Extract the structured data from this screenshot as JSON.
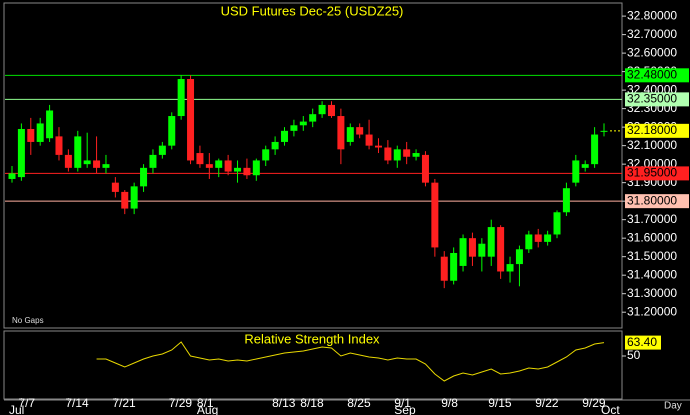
{
  "chart_data": {
    "type": "candlestick",
    "title": "USD Futures Dec-25 (USDZ25)",
    "up_color": "#00ff00",
    "down_color": "#ff2020",
    "categories": [
      null,
      "7/7",
      null,
      null,
      null,
      null,
      "7/14",
      null,
      null,
      null,
      null,
      "7/21",
      null,
      null,
      null,
      null,
      null,
      "7/29",
      null,
      null,
      "8/1",
      null,
      null,
      null,
      null,
      null,
      null,
      null,
      "8/13",
      null,
      null,
      "8/18",
      null,
      null,
      null,
      null,
      "8/25",
      null,
      null,
      null,
      null,
      "9/1",
      null,
      null,
      null,
      null,
      "9/8",
      null,
      null,
      null,
      null,
      "9/15",
      null,
      null,
      null,
      null,
      "9/22",
      null,
      null,
      null,
      null,
      "9/29",
      null,
      null
    ],
    "months": [
      {
        "label": "Jul",
        "index": 0
      },
      {
        "label": "Aug",
        "index": 20
      },
      {
        "label": "Sep",
        "index": 41
      },
      {
        "label": "Oct",
        "index": 63
      }
    ],
    "ohlc": [
      [
        31.92,
        31.99,
        31.9,
        31.95
      ],
      [
        31.93,
        32.22,
        31.91,
        32.19
      ],
      [
        32.19,
        32.25,
        32.05,
        32.12
      ],
      [
        32.12,
        32.25,
        32.1,
        32.22
      ],
      [
        32.14,
        32.32,
        32.12,
        32.29
      ],
      [
        32.15,
        32.2,
        32.02,
        32.05
      ],
      [
        32.05,
        32.08,
        31.96,
        31.98
      ],
      [
        31.98,
        32.18,
        31.96,
        32.15
      ],
      [
        32.0,
        32.17,
        31.98,
        32.02
      ],
      [
        32.02,
        32.15,
        31.95,
        31.98
      ],
      [
        31.98,
        32.05,
        31.95,
        32.0
      ],
      [
        31.9,
        31.93,
        31.82,
        31.85
      ],
      [
        31.85,
        31.86,
        31.73,
        31.76
      ],
      [
        31.76,
        31.9,
        31.73,
        31.88
      ],
      [
        31.88,
        32.0,
        31.85,
        31.98
      ],
      [
        31.98,
        32.08,
        31.95,
        32.05
      ],
      [
        32.05,
        32.12,
        32.03,
        32.1
      ],
      [
        32.1,
        32.28,
        32.08,
        32.26
      ],
      [
        32.26,
        32.48,
        32.24,
        32.46
      ],
      [
        32.46,
        32.48,
        32.0,
        32.02
      ],
      [
        32.06,
        32.1,
        31.98,
        32.0
      ],
      [
        32.0,
        32.06,
        31.92,
        31.98
      ],
      [
        31.98,
        32.03,
        31.93,
        32.02
      ],
      [
        32.02,
        32.05,
        31.94,
        31.96
      ],
      [
        31.96,
        32.02,
        31.9,
        31.98
      ],
      [
        31.98,
        32.03,
        31.92,
        31.94
      ],
      [
        31.94,
        32.03,
        31.91,
        32.02
      ],
      [
        32.02,
        32.1,
        31.99,
        32.08
      ],
      [
        32.08,
        32.15,
        32.05,
        32.12
      ],
      [
        32.12,
        32.2,
        32.1,
        32.18
      ],
      [
        32.18,
        32.24,
        32.15,
        32.21
      ],
      [
        32.21,
        32.26,
        32.18,
        32.23
      ],
      [
        32.23,
        32.3,
        32.2,
        32.27
      ],
      [
        32.27,
        32.34,
        32.25,
        32.32
      ],
      [
        32.32,
        32.34,
        32.25,
        32.26
      ],
      [
        32.26,
        32.3,
        32.0,
        32.08
      ],
      [
        32.12,
        32.22,
        32.1,
        32.2
      ],
      [
        32.2,
        32.22,
        32.14,
        32.16
      ],
      [
        32.16,
        32.24,
        32.08,
        32.1
      ],
      [
        32.1,
        32.14,
        32.06,
        32.09
      ],
      [
        32.09,
        32.13,
        32.0,
        32.02
      ],
      [
        32.02,
        32.1,
        31.98,
        32.08
      ],
      [
        32.08,
        32.12,
        32.0,
        32.04
      ],
      [
        32.04,
        32.08,
        32.02,
        32.06
      ],
      [
        32.05,
        32.07,
        31.88,
        31.9
      ],
      [
        31.9,
        31.92,
        31.5,
        31.55
      ],
      [
        31.5,
        31.53,
        31.33,
        31.37
      ],
      [
        31.37,
        31.55,
        31.35,
        31.52
      ],
      [
        31.45,
        31.62,
        31.42,
        31.6
      ],
      [
        31.6,
        31.63,
        31.45,
        31.5
      ],
      [
        31.5,
        31.6,
        31.42,
        31.57
      ],
      [
        31.5,
        31.7,
        31.45,
        31.66
      ],
      [
        31.66,
        31.67,
        31.38,
        31.42
      ],
      [
        31.42,
        31.5,
        31.36,
        31.46
      ],
      [
        31.46,
        31.56,
        31.34,
        31.54
      ],
      [
        31.54,
        31.64,
        31.52,
        31.62
      ],
      [
        31.62,
        31.65,
        31.55,
        31.58
      ],
      [
        31.58,
        31.64,
        31.56,
        31.62
      ],
      [
        31.62,
        31.75,
        31.6,
        31.74
      ],
      [
        31.74,
        31.9,
        31.72,
        31.87
      ],
      [
        31.9,
        32.05,
        31.88,
        32.02
      ],
      [
        31.98,
        32.02,
        31.96,
        32.0
      ],
      [
        32.0,
        32.2,
        31.98,
        32.16
      ],
      [
        32.18,
        32.22,
        32.15,
        32.18
      ]
    ],
    "ylim": [
      31.12,
      32.86
    ],
    "yticks": [
      {
        "value": 32.8,
        "label": "32.80000"
      },
      {
        "value": 32.7,
        "label": "32.70000"
      },
      {
        "value": 32.6,
        "label": "32.60000"
      },
      {
        "value": 32.5,
        "label": "32.50000"
      },
      {
        "value": 32.4,
        "label": "32.40000"
      },
      {
        "value": 32.3,
        "label": "32.30000"
      },
      {
        "value": 32.2,
        "label": "32.20000"
      },
      {
        "value": 32.1,
        "label": "32.10000"
      },
      {
        "value": 32.0,
        "label": "32.00000"
      },
      {
        "value": 31.9,
        "label": "31.90000"
      },
      {
        "value": 31.8,
        "label": "31.80000"
      },
      {
        "value": 31.7,
        "label": "31.70000"
      },
      {
        "value": 31.6,
        "label": "31.60000"
      },
      {
        "value": 31.5,
        "label": "31.50000"
      },
      {
        "value": 31.4,
        "label": "31.40000"
      },
      {
        "value": 31.3,
        "label": "31.30000"
      },
      {
        "value": 31.2,
        "label": "31.20000"
      }
    ],
    "levels": [
      {
        "value": 32.48,
        "label": "32.48000",
        "color": "#00e000",
        "label_bg": "#00ff00"
      },
      {
        "value": 32.35,
        "label": "32.35000",
        "color": "#90ff90",
        "label_bg": "#b0ffb0"
      },
      {
        "value": 31.95,
        "label": "31.95000",
        "color": "#ff2020",
        "label_bg": "#ff2020"
      },
      {
        "value": 31.8,
        "label": "31.80000",
        "color": "#ffb0a0",
        "label_bg": "#ffc0b0"
      }
    ],
    "last_price": {
      "value": 32.18,
      "label": "32.18000",
      "color": "#ffff00"
    },
    "annotation": "No Gaps",
    "x_axis_label": "Day",
    "rsi": {
      "title": "Relative Strength Index",
      "color": "#e8d800",
      "values": [
        null,
        null,
        null,
        null,
        null,
        null,
        null,
        null,
        null,
        47,
        47,
        43,
        39,
        43,
        47,
        50,
        52,
        56,
        64,
        50,
        48,
        46,
        47,
        45,
        46,
        45,
        47,
        49,
        51,
        53,
        54,
        55,
        57,
        59,
        58,
        50,
        53,
        51,
        49,
        48,
        46,
        48,
        47,
        47,
        42,
        32,
        25,
        30,
        33,
        31,
        34,
        37,
        32,
        33,
        35,
        38,
        37,
        39,
        44,
        49,
        56,
        58,
        62,
        63.4
      ],
      "last_label": {
        "value": 63.4,
        "label": "63.40"
      },
      "ylim": [
        8,
        74
      ],
      "yticks": [
        50
      ]
    }
  }
}
